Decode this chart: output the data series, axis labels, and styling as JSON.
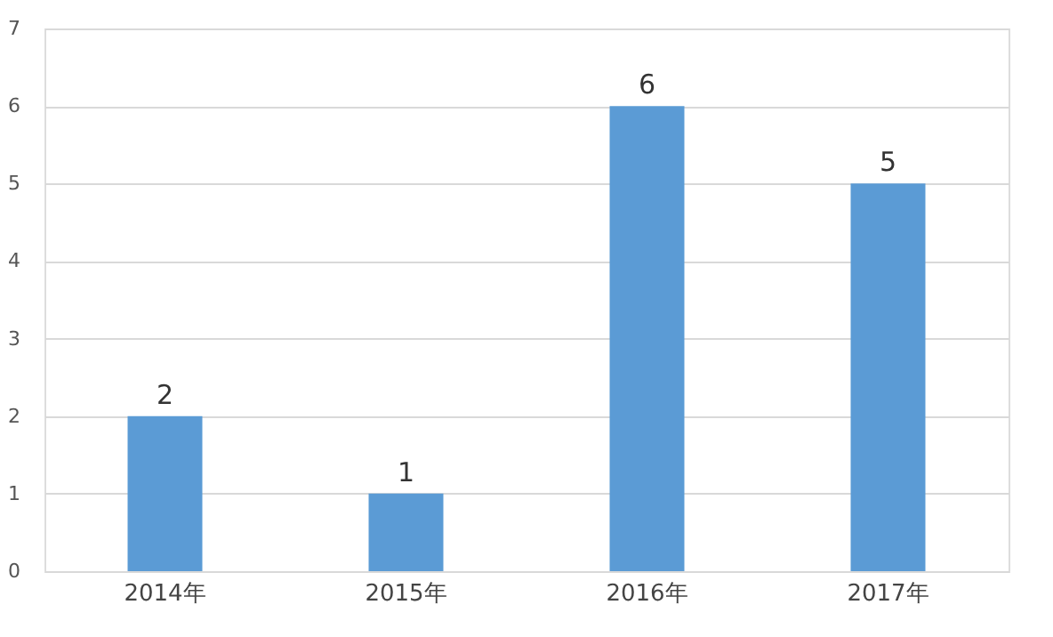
{
  "chart_data": {
    "type": "bar",
    "categories": [
      "2014年",
      "2015年",
      "2016年",
      "2017年"
    ],
    "values": [
      2,
      1,
      6,
      5
    ],
    "color": "#5b9bd5",
    "ylim": [
      0,
      7
    ],
    "yticks": [
      0,
      1,
      2,
      3,
      4,
      5,
      6,
      7
    ],
    "grid": "y",
    "data_labels": true
  }
}
